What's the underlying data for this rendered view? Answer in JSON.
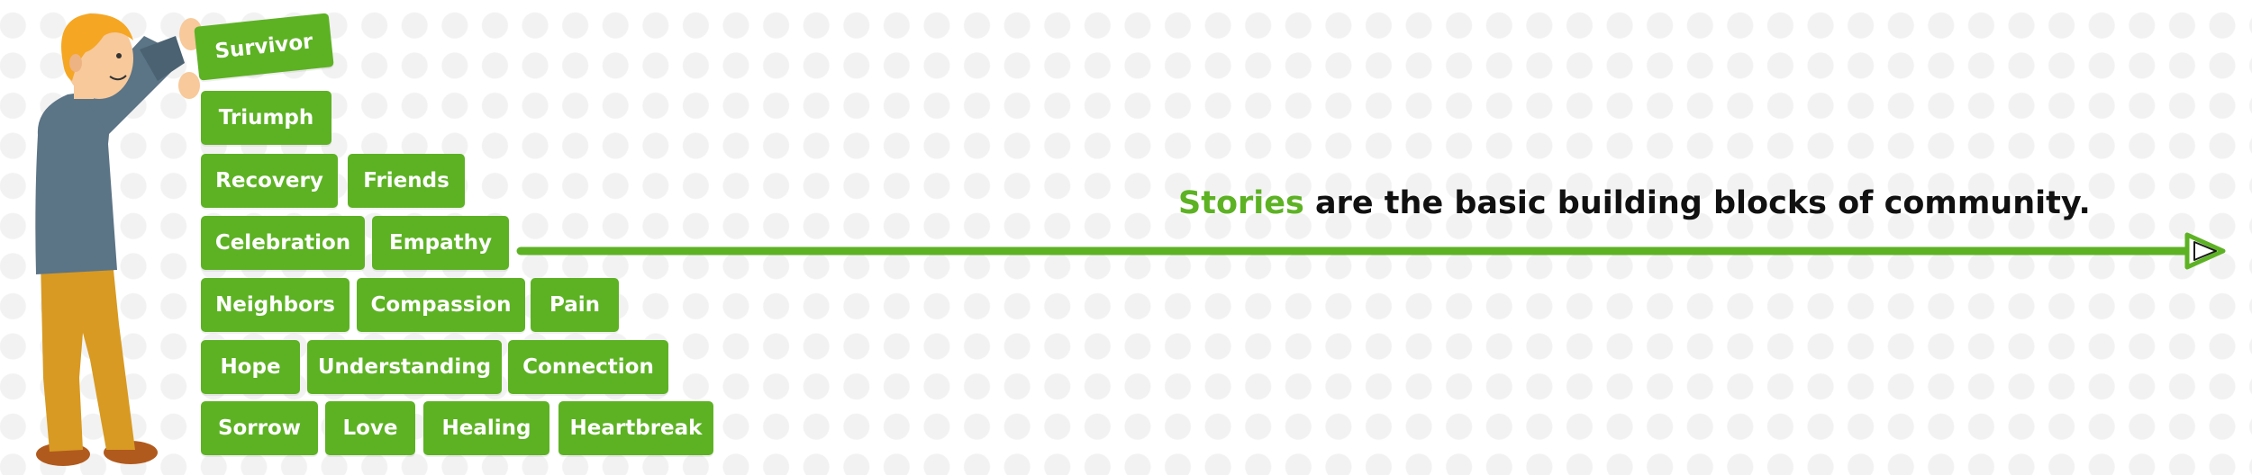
{
  "headline": {
    "highlight": "Stories",
    "rest": " are the basic building blocks of community.",
    "highlight_color": "#5db224"
  },
  "block_color": "#5db224",
  "blocks": [
    {
      "label": "Survivor"
    },
    {
      "label": "Triumph"
    },
    {
      "label": "Recovery"
    },
    {
      "label": "Friends"
    },
    {
      "label": "Celebration"
    },
    {
      "label": "Empathy"
    },
    {
      "label": "Neighbors"
    },
    {
      "label": "Compassion"
    },
    {
      "label": "Pain"
    },
    {
      "label": "Hope"
    },
    {
      "label": "Understanding"
    },
    {
      "label": "Connection"
    },
    {
      "label": "Sorrow"
    },
    {
      "label": "Love"
    },
    {
      "label": "Healing"
    },
    {
      "label": "Heartbreak"
    }
  ]
}
